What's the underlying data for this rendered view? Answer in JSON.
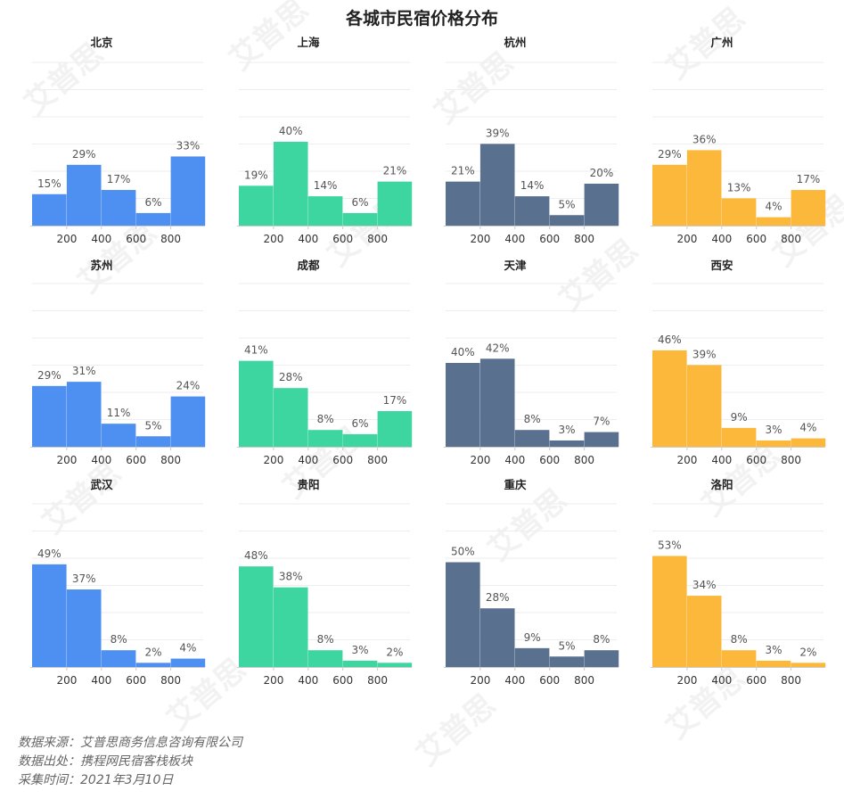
{
  "title": "各城市民宿价格分布",
  "colors": {
    "blue": "#4e8ff2",
    "green": "#3dd6a0",
    "slate": "#59708f",
    "orange": "#fbb83b",
    "axis": "#cccccc",
    "grid": "#eeeeee",
    "label": "#555555"
  },
  "chart_data": [
    {
      "type": "bar",
      "title": "北京",
      "color": "blue",
      "x_ticks": [
        "200",
        "400",
        "600",
        "800"
      ],
      "values": [
        15,
        29,
        17,
        6,
        33
      ],
      "labels": [
        "15%",
        "29%",
        "17%",
        "6%",
        "33%"
      ],
      "ylim": [
        0,
        60
      ]
    },
    {
      "type": "bar",
      "title": "上海",
      "color": "green",
      "x_ticks": [
        "200",
        "400",
        "600",
        "800"
      ],
      "values": [
        19,
        40,
        14,
        6,
        21
      ],
      "labels": [
        "19%",
        "40%",
        "14%",
        "6%",
        "21%"
      ],
      "ylim": [
        0,
        60
      ]
    },
    {
      "type": "bar",
      "title": "杭州",
      "color": "slate",
      "x_ticks": [
        "200",
        "400",
        "600",
        "800"
      ],
      "values": [
        21,
        39,
        14,
        5,
        20
      ],
      "labels": [
        "21%",
        "39%",
        "14%",
        "5%",
        "20%"
      ],
      "ylim": [
        0,
        60
      ]
    },
    {
      "type": "bar",
      "title": "广州",
      "color": "orange",
      "x_ticks": [
        "200",
        "400",
        "600",
        "800"
      ],
      "values": [
        29,
        36,
        13,
        4,
        17
      ],
      "labels": [
        "29%",
        "36%",
        "13%",
        "4%",
        "17%"
      ],
      "ylim": [
        0,
        60
      ]
    },
    {
      "type": "bar",
      "title": "苏州",
      "color": "blue",
      "x_ticks": [
        "200",
        "400",
        "600",
        "800"
      ],
      "values": [
        29,
        31,
        11,
        5,
        24
      ],
      "labels": [
        "29%",
        "31%",
        "11%",
        "5%",
        "24%"
      ],
      "ylim": [
        0,
        60
      ]
    },
    {
      "type": "bar",
      "title": "成都",
      "color": "green",
      "x_ticks": [
        "200",
        "400",
        "600",
        "800"
      ],
      "values": [
        41,
        28,
        8,
        6,
        17
      ],
      "labels": [
        "41%",
        "28%",
        "8%",
        "6%",
        "17%"
      ],
      "ylim": [
        0,
        60
      ]
    },
    {
      "type": "bar",
      "title": "天津",
      "color": "slate",
      "x_ticks": [
        "200",
        "400",
        "600",
        "800"
      ],
      "values": [
        40,
        42,
        8,
        3,
        7
      ],
      "labels": [
        "40%",
        "42%",
        "8%",
        "3%",
        "7%"
      ],
      "ylim": [
        0,
        60
      ]
    },
    {
      "type": "bar",
      "title": "西安",
      "color": "orange",
      "x_ticks": [
        "200",
        "400",
        "600",
        "800"
      ],
      "values": [
        46,
        39,
        9,
        3,
        4
      ],
      "labels": [
        "46%",
        "39%",
        "9%",
        "3%",
        "4%"
      ],
      "ylim": [
        0,
        60
      ]
    },
    {
      "type": "bar",
      "title": "武汉",
      "color": "blue",
      "x_ticks": [
        "200",
        "400",
        "600",
        "800"
      ],
      "values": [
        49,
        37,
        8,
        2,
        4
      ],
      "labels": [
        "49%",
        "37%",
        "8%",
        "2%",
        "4%"
      ],
      "ylim": [
        0,
        60
      ]
    },
    {
      "type": "bar",
      "title": "贵阳",
      "color": "green",
      "x_ticks": [
        "200",
        "400",
        "600",
        "800"
      ],
      "values": [
        48,
        38,
        8,
        3,
        2
      ],
      "labels": [
        "48%",
        "38%",
        "8%",
        "3%",
        "2%"
      ],
      "ylim": [
        0,
        60
      ]
    },
    {
      "type": "bar",
      "title": "重庆",
      "color": "slate",
      "x_ticks": [
        "200",
        "400",
        "600",
        "800"
      ],
      "values": [
        50,
        28,
        9,
        5,
        8
      ],
      "labels": [
        "50%",
        "28%",
        "9%",
        "5%",
        "8%"
      ],
      "ylim": [
        0,
        60
      ]
    },
    {
      "type": "bar",
      "title": "洛阳",
      "color": "orange",
      "x_ticks": [
        "200",
        "400",
        "600",
        "800"
      ],
      "values": [
        53,
        34,
        8,
        3,
        2
      ],
      "labels": [
        "53%",
        "34%",
        "8%",
        "3%",
        "2%"
      ],
      "ylim": [
        0,
        60
      ]
    }
  ],
  "source": {
    "line1": "数据来源：艾普思商务信息咨询有限公司",
    "line2": "数据出处：携程网民宿客栈板块",
    "line3": "采集时间：2021年3月10日"
  },
  "watermark_text": "艾普思"
}
